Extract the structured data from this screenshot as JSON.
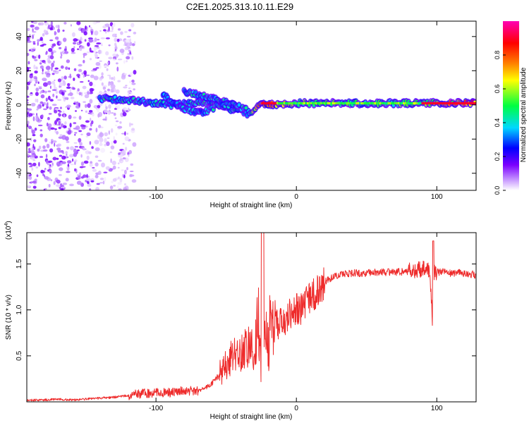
{
  "title": "C2E1.2025.313.10.11.E29",
  "colors": {
    "snr_line": "#ee2b2b",
    "axis": "#000000",
    "background": "#ffffff"
  },
  "chart_data": [
    {
      "type": "heatmap",
      "name": "spectrogram",
      "xlabel": "Height of straight line (km)",
      "ylabel": "Frequency (Hz)",
      "xlim": [
        -192,
        128
      ],
      "ylim": [
        -50,
        49
      ],
      "xticks": [
        -100,
        0,
        100
      ],
      "xtick_labels": [
        "-100",
        "0",
        "100"
      ],
      "yticks": [
        -40,
        -20,
        0,
        20,
        40
      ],
      "ytick_labels": [
        "-40",
        "-20",
        "0",
        "20",
        "40"
      ],
      "colorbar": {
        "label": "Normalized spectral amplitude",
        "range": [
          0,
          1
        ],
        "ticks": [
          0,
          0.2,
          0.4,
          0.6,
          0.8
        ],
        "tick_labels": [
          "0.0",
          "0.2",
          "0.4",
          "0.6",
          "0.8"
        ],
        "colormap": [
          "#ffffff",
          "#7b00ff",
          "#0000ff",
          "#00d8ff",
          "#00ff40",
          "#ffff00",
          "#ff8000",
          "#ff0000",
          "#ff00ff"
        ]
      },
      "features": {
        "noise_region_x": [
          -192,
          -115
        ],
        "signal_tracks": [
          {
            "x": [
              -140,
              -110,
              -90,
              -70,
              -50,
              -35,
              -25,
              0,
              50,
              90,
              128
            ],
            "y": [
              4,
              2,
              0,
              1,
              2,
              -5,
              0,
              1,
              1,
              1,
              1
            ],
            "amplitude": [
              0.45,
              0.45,
              0.4,
              0.45,
              0.4,
              0.4,
              0.95,
              0.55,
              0.5,
              0.55,
              0.9
            ]
          },
          {
            "x": [
              -95,
              -85,
              -75,
              -65,
              -55,
              -45,
              -35
            ],
            "y": [
              6,
              0,
              -4,
              -4,
              0,
              -3,
              -2
            ],
            "amplitude": [
              0.4,
              0.4,
              0.4,
              0.35,
              0.45,
              0.45,
              0.4
            ]
          },
          {
            "x": [
              -80,
              -70,
              -60,
              -50,
              -40
            ],
            "y": [
              8,
              6,
              4,
              0,
              0
            ],
            "amplitude": [
              0.4,
              0.45,
              0.4,
              0.4,
              0.4
            ]
          }
        ]
      }
    },
    {
      "type": "line",
      "name": "snr",
      "xlabel": "Height of straight line (km)",
      "ylabel": "SNR (10 * v/v)",
      "y_multiplier": "(x10",
      "y_multiplier_exp": "4",
      "xlim": [
        -192,
        128
      ],
      "ylim": [
        0,
        1.84
      ],
      "xticks": [
        -100,
        0,
        100
      ],
      "xtick_labels": [
        "-100",
        "0",
        "100"
      ],
      "yticks": [
        0.5,
        1.0,
        1.5
      ],
      "ytick_labels": [
        "0.5",
        "1.0",
        "1.5"
      ],
      "series": [
        {
          "name": "SNR",
          "x": [
            -192,
            -180,
            -170,
            -160,
            -150,
            -140,
            -130,
            -120,
            -110,
            -100,
            -90,
            -80,
            -70,
            -65,
            -60,
            -55,
            -50,
            -45,
            -40,
            -35,
            -30,
            -27,
            -25,
            -22,
            -20,
            -17,
            -15,
            -12,
            -10,
            -7,
            -5,
            -2,
            0,
            3,
            5,
            8,
            10,
            15,
            20,
            25,
            30,
            40,
            50,
            60,
            70,
            80,
            85,
            90,
            95,
            97,
            98,
            100,
            105,
            110,
            120,
            128
          ],
          "y": [
            0.02,
            0.02,
            0.03,
            0.02,
            0.03,
            0.04,
            0.05,
            0.07,
            0.09,
            0.1,
            0.1,
            0.12,
            0.12,
            0.15,
            0.2,
            0.3,
            0.4,
            0.5,
            0.55,
            0.58,
            0.62,
            0.9,
            0.3,
            0.75,
            0.7,
            0.78,
            0.85,
            0.85,
            0.9,
            0.88,
            0.95,
            0.95,
            1.0,
            1.0,
            1.05,
            1.1,
            1.15,
            1.2,
            1.3,
            1.35,
            1.38,
            1.4,
            1.4,
            1.41,
            1.41,
            1.42,
            1.43,
            1.45,
            1.42,
            0.88,
            1.4,
            1.41,
            1.42,
            1.4,
            1.4,
            1.38
          ]
        }
      ]
    }
  ]
}
